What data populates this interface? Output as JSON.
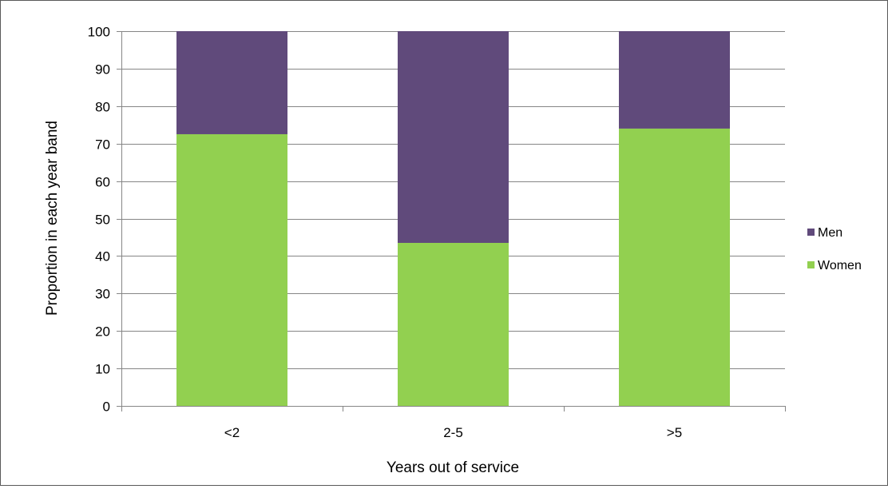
{
  "chart_data": {
    "type": "bar",
    "stacked": true,
    "title": "",
    "xlabel": "Years out of service",
    "ylabel": "Proportion in each year band",
    "categories": [
      "<2",
      "2-5",
      ">5"
    ],
    "series": [
      {
        "name": "Women",
        "values": [
          72.5,
          43.5,
          74
        ],
        "color": "#92d050"
      },
      {
        "name": "Men",
        "values": [
          27.5,
          56.5,
          26
        ],
        "color": "#604a7b"
      }
    ],
    "ylim": [
      0,
      100
    ],
    "yticks": [
      0,
      10,
      20,
      30,
      40,
      50,
      60,
      70,
      80,
      90,
      100
    ],
    "grid": true,
    "legend_position": "right",
    "legend_order": [
      "Men",
      "Women"
    ]
  }
}
